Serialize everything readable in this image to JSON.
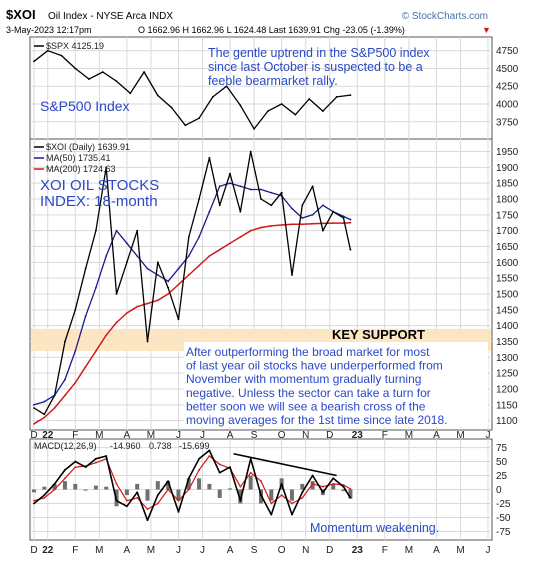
{
  "header": {
    "symbol": "$XOI",
    "name": "Oil Index - NYSE Arca INDX",
    "date": "3-May-2023 12:17pm",
    "quote": "O 1662.96  H 1662.96  L 1624.48  Last 1639.91  Chg -23.05 (-1.39%)",
    "source": "© StockCharts.com",
    "down_marker": "▼"
  },
  "colors": {
    "annotation": "#2a49c7",
    "price": "#000000",
    "ma50": "#1a1a8c",
    "ma200": "#d11a1a",
    "macd": "#000000",
    "signal": "#d11a1a",
    "histogram": "#6f6f6f",
    "support_zone": "#fbe5c2",
    "grid": "#d9d9d9",
    "background": "#ffffff"
  },
  "chart_data": [
    {
      "type": "line",
      "panel": "spx",
      "legend": "$SPX 4125.19",
      "title_annotation": "S&P500 Index",
      "annotation_lines": [
        "The gentle uptrend in the S&P500 index",
        "since last October is suspected to be a",
        "feeble bearmarket rally."
      ],
      "x": [
        0,
        4,
        8,
        12,
        16,
        20,
        24,
        28,
        32,
        36,
        40,
        44,
        48,
        52,
        56,
        60,
        64,
        68,
        72,
        76,
        80,
        84,
        88,
        92
      ],
      "y": [
        4600,
        4750,
        4680,
        4500,
        4350,
        4450,
        4320,
        4150,
        4450,
        4120,
        3950,
        3700,
        3800,
        4100,
        4250,
        3980,
        3650,
        3900,
        4000,
        3850,
        4070,
        3900,
        4100,
        4125
      ],
      "ylim": [
        3550,
        4900
      ],
      "yticks": [
        3750,
        4000,
        4250,
        4500,
        4750
      ]
    },
    {
      "type": "line",
      "panel": "price",
      "legend": [
        "$XOI (Daily) 1639.91",
        "MA(50) 1735.41",
        "MA(200) 1724.63"
      ],
      "title_annotation": [
        "XOI OIL STOCKS",
        "INDEX: 18-month"
      ],
      "annotation_lines": [
        "After outperforming the broad market for most",
        "of last year oil stocks have underperformed from",
        "November with momentum gradually turning",
        "negative. Unless the sector can take a turn for",
        "better soon we will see a bearish cross of the",
        "moving averages for the 1st time since late 2018."
      ],
      "support_label": "KEY SUPPORT",
      "support_zone": [
        1320,
        1390
      ],
      "x": [
        0,
        3,
        6,
        9,
        12,
        15,
        18,
        21,
        24,
        27,
        30,
        33,
        36,
        39,
        42,
        45,
        48,
        51,
        54,
        57,
        60,
        63,
        66,
        69,
        72,
        75,
        78,
        81,
        84,
        87,
        90,
        92
      ],
      "close": [
        1140,
        1120,
        1180,
        1350,
        1450,
        1580,
        1700,
        1900,
        1500,
        1600,
        1700,
        1350,
        1600,
        1520,
        1420,
        1680,
        1800,
        1930,
        1780,
        1880,
        1760,
        1950,
        1800,
        1780,
        1820,
        1560,
        1780,
        1840,
        1700,
        1760,
        1740,
        1640
      ],
      "ma50": [
        1150,
        1160,
        1180,
        1230,
        1320,
        1430,
        1520,
        1620,
        1700,
        1660,
        1620,
        1580,
        1560,
        1540,
        1580,
        1620,
        1680,
        1760,
        1840,
        1850,
        1840,
        1830,
        1830,
        1820,
        1810,
        1770,
        1740,
        1750,
        1780,
        1760,
        1745,
        1735
      ],
      "ma200": [
        1090,
        1110,
        1140,
        1180,
        1220,
        1270,
        1320,
        1370,
        1410,
        1440,
        1460,
        1470,
        1480,
        1500,
        1530,
        1560,
        1590,
        1620,
        1640,
        1660,
        1680,
        1700,
        1710,
        1715,
        1718,
        1720,
        1720,
        1722,
        1723,
        1724,
        1724,
        1725
      ],
      "ylim": [
        1080,
        1980
      ],
      "yticks": [
        1100,
        1150,
        1200,
        1250,
        1300,
        1350,
        1400,
        1450,
        1500,
        1550,
        1600,
        1650,
        1700,
        1750,
        1800,
        1850,
        1900,
        1950
      ]
    },
    {
      "type": "line",
      "panel": "macd",
      "legend": [
        "MACD(12,26,9)",
        "-14.960",
        "0.738",
        "-15.699"
      ],
      "annotation": "Momentum weakening.",
      "trendline": [
        [
          58,
          64
        ],
        [
          88,
          25
        ]
      ],
      "x": [
        0,
        3,
        6,
        9,
        12,
        15,
        18,
        21,
        24,
        27,
        30,
        33,
        36,
        39,
        42,
        45,
        48,
        51,
        54,
        57,
        60,
        63,
        66,
        69,
        72,
        75,
        78,
        81,
        84,
        87,
        90,
        92
      ],
      "macd": [
        -25,
        -10,
        10,
        35,
        50,
        40,
        55,
        60,
        -20,
        -30,
        -5,
        -55,
        -10,
        15,
        -40,
        20,
        55,
        70,
        30,
        40,
        -20,
        55,
        -10,
        -45,
        10,
        -45,
        -5,
        25,
        -5,
        20,
        5,
        -15
      ],
      "signal": [
        -20,
        -15,
        0,
        20,
        40,
        42,
        48,
        55,
        10,
        -20,
        -15,
        -35,
        -25,
        0,
        -20,
        0,
        35,
        60,
        45,
        38,
        5,
        30,
        15,
        -25,
        -10,
        -25,
        -15,
        10,
        5,
        10,
        8,
        1
      ],
      "ylim": [
        -85,
        85
      ],
      "yticks": [
        -75,
        -50,
        -25,
        0,
        25,
        50,
        75
      ]
    }
  ],
  "x_axis": {
    "labels": [
      {
        "t": "D",
        "x": 0
      },
      {
        "t": "22",
        "x": 4
      },
      {
        "t": "F",
        "x": 12
      },
      {
        "t": "M",
        "x": 19
      },
      {
        "t": "A",
        "x": 27
      },
      {
        "t": "M",
        "x": 34
      },
      {
        "t": "J",
        "x": 42
      },
      {
        "t": "J",
        "x": 49
      },
      {
        "t": "A",
        "x": 57
      },
      {
        "t": "S",
        "x": 64
      },
      {
        "t": "O",
        "x": 72
      },
      {
        "t": "N",
        "x": 79
      },
      {
        "t": "D",
        "x": 86
      },
      {
        "t": "23",
        "x": 94
      },
      {
        "t": "F",
        "x": 102
      },
      {
        "t": "M",
        "x": 109
      },
      {
        "t": "A",
        "x": 117
      },
      {
        "t": "M",
        "x": 124
      },
      {
        "t": "J",
        "x": 132
      }
    ]
  }
}
